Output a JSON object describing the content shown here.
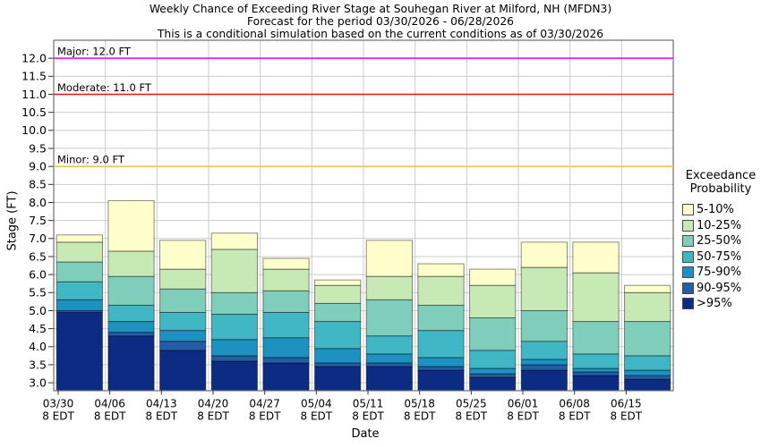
{
  "header": {
    "title": "Weekly Chance of Exceeding River Stage at Souhegan River at Milford, NH (MFDN3)",
    "subtitle": "Forecast for the period 03/30/2026 - 06/28/2026",
    "note": "This is a conditional simulation based on the current conditions as of 03/30/2026"
  },
  "chart_data": {
    "type": "bar",
    "stacked": true,
    "title": "Weekly Chance of Exceeding River Stage at Souhegan River at Milford, NH (MFDN3)",
    "xlabel": "Date",
    "ylabel": "Stage (FT)",
    "x_sublabel": "8 EDT",
    "categories": [
      "03/30",
      "04/06",
      "04/13",
      "04/20",
      "04/27",
      "05/04",
      "05/11",
      "05/18",
      "05/25",
      "06/01",
      "06/08",
      "06/15"
    ],
    "yticks": [
      3.0,
      3.5,
      4.0,
      4.5,
      5.0,
      5.5,
      6.0,
      6.5,
      7.0,
      7.5,
      8.0,
      8.5,
      9.0,
      9.5,
      10.0,
      10.5,
      11.0,
      11.5,
      12.0
    ],
    "ylim": [
      2.78,
      12.5
    ],
    "baseline": 2.78,
    "grid": true,
    "legend": {
      "title_line1": "Exceedance",
      "title_line2": "Probability",
      "position": "right"
    },
    "series": [
      {
        "label": "5-10%",
        "color": "#ffffcc",
        "tops": [
          7.1,
          8.05,
          6.95,
          7.15,
          6.45,
          5.85,
          6.95,
          6.3,
          6.15,
          6.9,
          6.9,
          5.7
        ]
      },
      {
        "label": "10-25%",
        "color": "#c7e9b4",
        "tops": [
          6.9,
          6.65,
          6.15,
          6.7,
          6.15,
          5.7,
          5.95,
          5.95,
          5.7,
          6.2,
          6.05,
          5.5
        ]
      },
      {
        "label": "25-50%",
        "color": "#7fcdbb",
        "tops": [
          6.35,
          5.95,
          5.6,
          5.5,
          5.55,
          5.2,
          5.3,
          5.15,
          4.8,
          5.0,
          4.7,
          4.7
        ]
      },
      {
        "label": "50-75%",
        "color": "#41b6c4",
        "tops": [
          5.8,
          5.15,
          4.95,
          4.9,
          4.95,
          4.7,
          4.3,
          4.45,
          3.9,
          4.15,
          3.8,
          3.75
        ]
      },
      {
        "label": "75-90%",
        "color": "#1d91c0",
        "tops": [
          5.3,
          4.7,
          4.45,
          4.2,
          4.25,
          3.95,
          3.8,
          3.7,
          3.4,
          3.65,
          3.4,
          3.35
        ]
      },
      {
        "label": "90-95%",
        "color": "#225ea8",
        "tops": [
          5.0,
          4.4,
          4.15,
          3.75,
          3.7,
          3.55,
          3.55,
          3.45,
          3.25,
          3.5,
          3.3,
          3.2
        ]
      },
      {
        "label": ">95%",
        "color": "#0c2c84",
        "tops": [
          4.95,
          4.3,
          3.9,
          3.6,
          3.55,
          3.45,
          3.45,
          3.35,
          3.15,
          3.35,
          3.2,
          3.1
        ]
      }
    ],
    "thresholds": [
      {
        "name": "major",
        "label": "Major: 12.0 FT",
        "value": 12.0,
        "color": "#ee00ee"
      },
      {
        "name": "moderate",
        "label": "Moderate: 11.0 FT",
        "value": 11.0,
        "color": "#ee1111"
      },
      {
        "name": "minor",
        "label": "Minor: 9.0 FT",
        "value": 9.0,
        "color": "#eec33c"
      }
    ]
  }
}
